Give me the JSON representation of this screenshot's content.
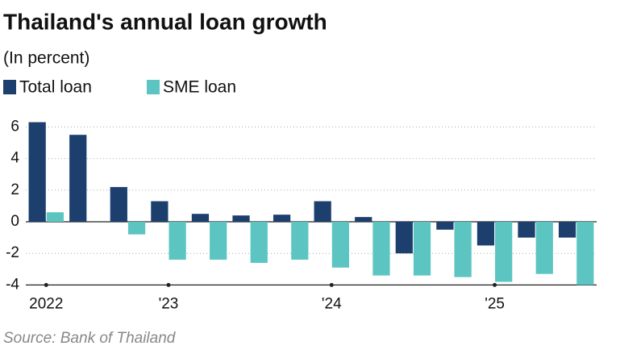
{
  "chart_data": {
    "type": "bar",
    "title": "Thailand's annual loan growth",
    "subtitle": "(In percent)",
    "source": "Source: Bank of Thailand",
    "categories": [
      "2022",
      null,
      null,
      "'23",
      null,
      null,
      null,
      "'24",
      null,
      null,
      null,
      "'25",
      null,
      null
    ],
    "series": [
      {
        "name": "Total loan",
        "color": "#1d3f6e",
        "values": [
          6.3,
          5.5,
          2.2,
          1.3,
          0.5,
          0.4,
          0.45,
          1.3,
          0.3,
          -2.0,
          -0.5,
          -1.5,
          -1.0,
          -1.0
        ]
      },
      {
        "name": "SME loan",
        "color": "#5cc5c2",
        "values": [
          0.6,
          0,
          -0.8,
          -2.4,
          -2.4,
          -2.6,
          -2.4,
          -2.9,
          -3.4,
          -3.4,
          -3.5,
          -3.8,
          -3.3,
          -4.0
        ]
      }
    ],
    "ylim": [
      -4,
      6.5
    ],
    "yticks": [
      -4,
      -2,
      0,
      2,
      4,
      6
    ],
    "grid": true
  }
}
